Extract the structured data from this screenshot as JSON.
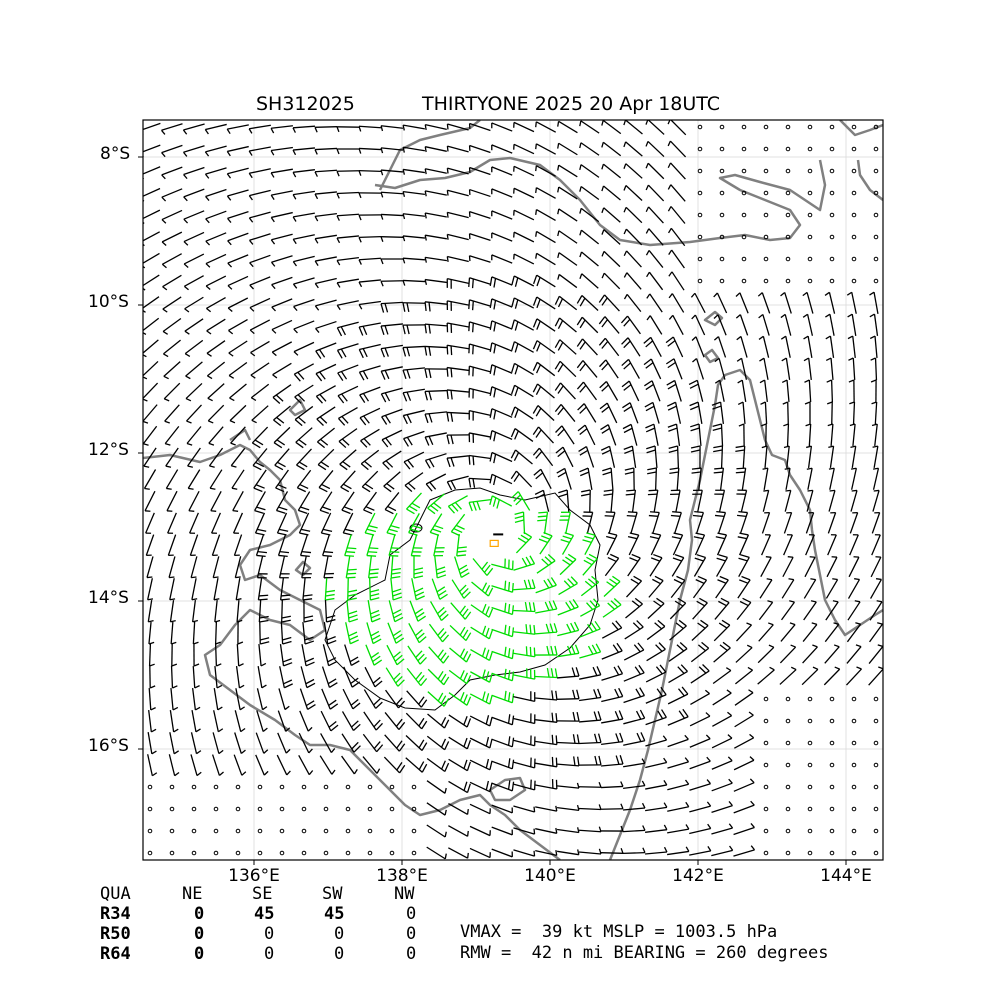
{
  "title": {
    "storm_id": "SH312025",
    "storm_name_time": "THIRTYONE 2025 20 Apr 18UTC"
  },
  "axes": {
    "lat_labels": [
      "8°S",
      "10°S",
      "12°S",
      "14°S",
      "16°S"
    ],
    "lon_labels": [
      "136°E",
      "138°E",
      "140°E",
      "142°E",
      "144°E"
    ],
    "lon_range": [
      134.5,
      144.5
    ],
    "lat_range": [
      -17.5,
      -7.5
    ],
    "grid": true
  },
  "colors": {
    "coast": "#808080",
    "barb": "#000000",
    "barb_34kt": "#00dd00",
    "center_marker": "#ffa500",
    "contour": "#000000"
  },
  "storm": {
    "center_lon": 139.3,
    "center_lat": -13.1
  },
  "wind_radii_table": {
    "header": [
      "QUA",
      "NE",
      "SE",
      "SW",
      "NW"
    ],
    "rows": [
      {
        "label": "R34",
        "values": [
          "0",
          "45",
          "45",
          "0"
        ]
      },
      {
        "label": "R50",
        "values": [
          "0",
          "0",
          "0",
          "0"
        ]
      },
      {
        "label": "R64",
        "values": [
          "0",
          "0",
          "0",
          "0"
        ]
      }
    ]
  },
  "stats": {
    "line1": "VMAX =  39 kt MSLP = 1003.5 hPa",
    "line2": "RMW =  42 n mi BEARING = 260 degrees"
  }
}
